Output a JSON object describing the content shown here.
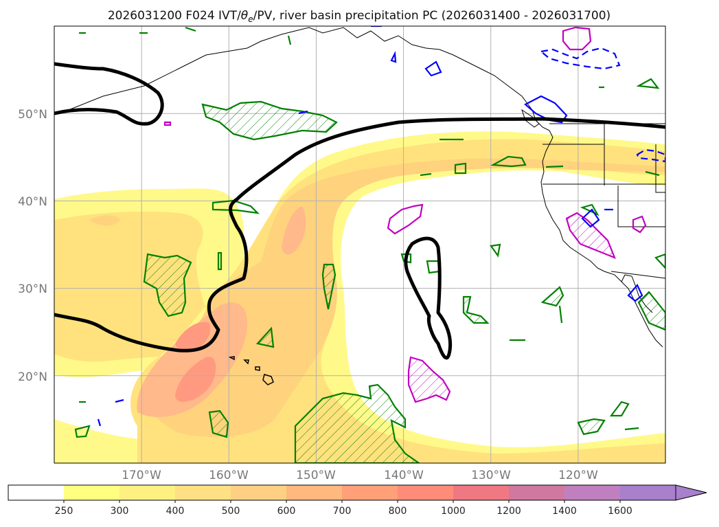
{
  "title": "2026031200 F024 IVT/θe/PV, river basin precipitation PC (2026031400 - 2026031700)",
  "title_parts": {
    "prefix": "2026031200 F024 IVT/",
    "theta": "θ",
    "theta_sub": "e",
    "suffix": "/PV, river basin precipitation PC (2026031400 - 2026031700)"
  },
  "map": {
    "lon_range": [
      -180,
      -110
    ],
    "lat_range": [
      10,
      60
    ],
    "lat_labels": [
      {
        "lat": 50,
        "text": "50°N"
      },
      {
        "lat": 40,
        "text": "40°N"
      },
      {
        "lat": 30,
        "text": "30°N"
      },
      {
        "lat": 20,
        "text": "20°N"
      }
    ],
    "lon_labels": [
      {
        "lon": -170,
        "text": "170°W"
      },
      {
        "lon": -160,
        "text": "160°W"
      },
      {
        "lon": -150,
        "text": "150°W"
      },
      {
        "lon": -140,
        "text": "140°W"
      },
      {
        "lon": -130,
        "text": "130°W"
      },
      {
        "lon": -120,
        "text": "120°W"
      }
    ],
    "grid_lons": [
      -170,
      -160,
      -150,
      -140,
      -130,
      -120
    ],
    "grid_lats": [
      50,
      40,
      30,
      20
    ]
  },
  "colorbar": {
    "levels": [
      250,
      300,
      400,
      500,
      600,
      700,
      800,
      1000,
      1200,
      1400,
      1600
    ],
    "labels": [
      "250",
      "300",
      "400",
      "500",
      "600",
      "700",
      "800",
      "1000",
      "1200",
      "1400",
      "1600"
    ],
    "colors": [
      "#ffffff",
      "#ffff80",
      "#fff082",
      "#ffe083",
      "#ffd084",
      "#ffb87e",
      "#ffa078",
      "#ff8c78",
      "#f07882",
      "#d078a0",
      "#c080c0",
      "#a880cc"
    ]
  },
  "colors": {
    "ivt_fill": [
      "#fff98a",
      "#ffe27d",
      "#ffd27e",
      "#ffb98a",
      "#ff9a80"
    ],
    "theta_contour": "#000000",
    "pv_green": "#008000",
    "pv_blue": "#0000ff",
    "pv_magenta": "#c000c0",
    "coast": "#000000",
    "grid": "#b0b0b0"
  }
}
